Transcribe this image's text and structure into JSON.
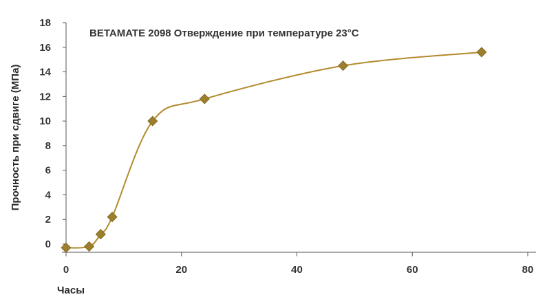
{
  "chart_data": {
    "type": "line",
    "title": "BETAMATE 2098 Отверждение при температуре 23°C",
    "xlabel": "Часы",
    "ylabel": "Прочность при сдвиге (МПа)",
    "xlim": [
      0,
      80
    ],
    "ylim": [
      0,
      18
    ],
    "xticks": [
      0,
      20,
      40,
      60,
      80
    ],
    "yticks": [
      0,
      2,
      4,
      6,
      8,
      10,
      12,
      14,
      16,
      18
    ],
    "grid": false,
    "marker": "diamond",
    "series": [
      {
        "x": [
          0,
          4,
          6,
          8,
          15,
          24,
          48,
          72
        ],
        "y": [
          -0.3,
          -0.2,
          0.8,
          2.2,
          10.0,
          11.8,
          14.5,
          15.6
        ]
      }
    ],
    "colors": {
      "line": "#b38a2e",
      "marker": "#9c7f2c",
      "axis": "#555555"
    }
  }
}
